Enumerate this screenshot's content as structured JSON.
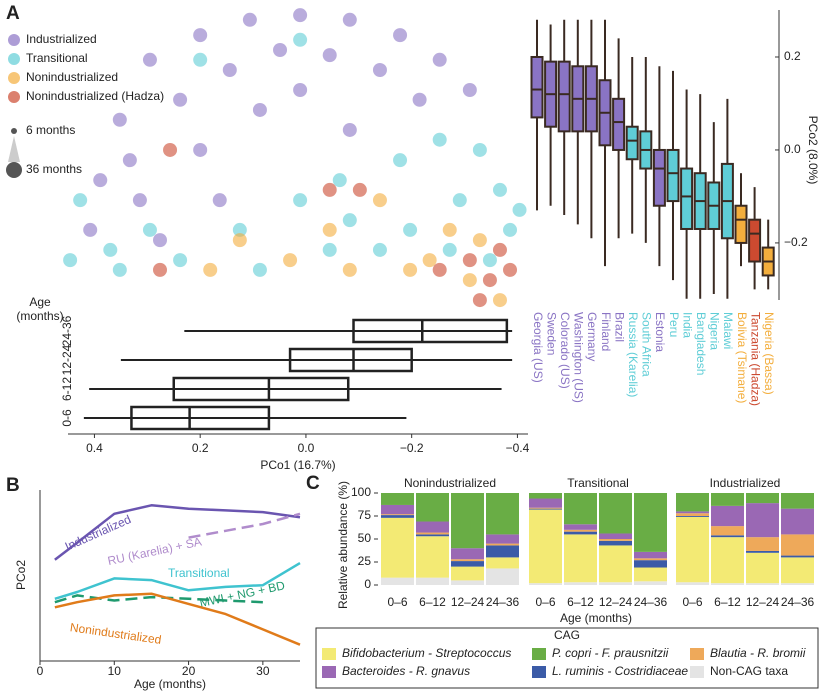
{
  "chart_data": [
    {
      "type": "scatter",
      "panel": "A",
      "xlim": [
        0.45,
        -0.42
      ],
      "ylim": [
        -0.34,
        0.3
      ],
      "size_legend": [
        "6 months",
        "36 months"
      ],
      "series": [
        {
          "name": "Industrialized",
          "color": "#8a74c4",
          "x": [
            0.295,
            0.2,
            0.106,
            0.011,
            -0.083,
            -0.178,
            -0.253,
            -0.31,
            0.238,
            0.144,
            0.049,
            -0.045,
            -0.14,
            0.352,
            0.389,
            0.314,
            0.2,
            0.087,
            0.408,
            0.276,
            0.011,
            -0.215,
            0.163,
            -0.083,
            0.333
          ],
          "y": [
            0.194,
            0.247,
            0.28,
            0.29,
            0.28,
            0.247,
            0.194,
            0.129,
            0.108,
            0.172,
            0.215,
            0.204,
            0.172,
            0.065,
            -0.065,
            -0.108,
            0,
            0.086,
            -0.172,
            -0.194,
            0.129,
            0.108,
            -0.108,
            0.043,
            -0.022
          ]
        },
        {
          "name": "Transitional",
          "color": "#5fcdd6",
          "x": [
            0.427,
            0.446,
            0.352,
            0.238,
            0.125,
            0.011,
            -0.064,
            -0.178,
            -0.253,
            -0.329,
            -0.367,
            -0.386,
            -0.348,
            0.087,
            -0.083,
            0.2,
            0.011,
            -0.197,
            -0.291,
            0.295,
            0.37,
            -0.404,
            -0.14,
            -0.045,
            -0.272
          ],
          "y": [
            -0.108,
            -0.237,
            -0.258,
            -0.237,
            -0.172,
            -0.108,
            -0.065,
            -0.022,
            0.022,
            0,
            -0.086,
            -0.172,
            -0.237,
            -0.258,
            -0.151,
            0.194,
            0.237,
            -0.172,
            -0.108,
            -0.172,
            -0.215,
            -0.129,
            -0.215,
            -0.215,
            -0.215
          ]
        },
        {
          "name": "Nonindustrialized",
          "color": "#f3ae3d",
          "x": [
            0.125,
            0.03,
            -0.045,
            -0.14,
            -0.234,
            -0.31,
            -0.367,
            -0.197,
            0.181,
            -0.083,
            -0.272,
            -0.329
          ],
          "y": [
            -0.194,
            -0.237,
            -0.172,
            -0.108,
            -0.237,
            -0.28,
            -0.323,
            -0.258,
            -0.258,
            -0.258,
            -0.172,
            -0.194
          ]
        },
        {
          "name": "Nonindustrialized (Hadza)",
          "color": "#cc4a30",
          "x": [
            0.257,
            -0.31,
            -0.348,
            -0.386,
            -0.329,
            -0.253,
            -0.367,
            -0.102,
            -0.045,
            0.276
          ],
          "y": [
            0,
            -0.237,
            -0.28,
            -0.258,
            -0.323,
            -0.258,
            -0.215,
            -0.086,
            -0.086,
            -0.258
          ]
        }
      ]
    },
    {
      "type": "box",
      "orientation": "horizontal",
      "xlabel": "PCo1 (16.7%)",
      "ylabel": [
        "Age",
        "(months)"
      ],
      "xlim": [
        0.45,
        -0.42
      ],
      "xticks": [
        0.4,
        0.2,
        {
          "value": 0,
          "label": "0.0"
        },
        {
          "value": -0.2,
          "label": "−0.2"
        },
        {
          "value": -0.4,
          "label": "−0.4"
        }
      ],
      "categories": [
        "0-6",
        "6-12",
        "12-24",
        "24-36"
      ],
      "boxes": [
        {
          "whislo": -0.19,
          "q1": 0.07,
          "med": 0.22,
          "q3": 0.33,
          "whishi": 0.42
        },
        {
          "whislo": -0.37,
          "q1": -0.08,
          "med": 0.07,
          "q3": 0.25,
          "whishi": 0.41
        },
        {
          "whislo": -0.39,
          "q1": -0.2,
          "med": -0.09,
          "q3": 0.03,
          "whishi": 0.35
        },
        {
          "whislo": -0.39,
          "q1": -0.38,
          "med": -0.22,
          "q3": -0.09,
          "whishi": 0.23
        }
      ]
    },
    {
      "type": "box",
      "orientation": "vertical",
      "ylabel": "PCo2 (8.0%)",
      "ylim": [
        -0.34,
        0.3
      ],
      "yticks": [
        0.2,
        {
          "value": 0,
          "label": "0.0"
        },
        {
          "value": -0.2,
          "label": "−0.2"
        }
      ],
      "categories": [
        "Georgia (US)",
        "Sweden",
        "Colorado (US)",
        "Washington (US)",
        "Germany",
        "Finland",
        "Brazil",
        "Russia (Karelia)",
        "South Africa",
        "Estonia",
        "Peru",
        "India",
        "Bangladesh",
        "Nigeria",
        "Malawi",
        "Bolivia (Tsimane)",
        "Tanzania (Hadza)",
        "Nigeria (Bassa)"
      ],
      "colors": [
        "#8a74c4",
        "#8a74c4",
        "#8a74c4",
        "#8a74c4",
        "#8a74c4",
        "#8a74c4",
        "#8a74c4",
        "#5fcdd6",
        "#5fcdd6",
        "#8a74c4",
        "#5fcdd6",
        "#5fcdd6",
        "#5fcdd6",
        "#5fcdd6",
        "#5fcdd6",
        "#f3ae3d",
        "#cc4a30",
        "#f3ae3d"
      ],
      "boxes": [
        {
          "whislo": -0.13,
          "q1": 0.07,
          "med": 0.13,
          "q3": 0.2,
          "whishi": 0.28
        },
        {
          "whislo": -0.12,
          "q1": 0.05,
          "med": 0.12,
          "q3": 0.19,
          "whishi": 0.27
        },
        {
          "whislo": -0.14,
          "q1": 0.04,
          "med": 0.12,
          "q3": 0.19,
          "whishi": 0.28
        },
        {
          "whislo": -0.16,
          "q1": 0.04,
          "med": 0.11,
          "q3": 0.18,
          "whishi": 0.28
        },
        {
          "whislo": -0.19,
          "q1": 0.04,
          "med": 0.11,
          "q3": 0.18,
          "whishi": 0.28
        },
        {
          "whislo": -0.25,
          "q1": 0.01,
          "med": 0.08,
          "q3": 0.15,
          "whishi": 0.28
        },
        {
          "whislo": -0.19,
          "q1": 0,
          "med": 0.06,
          "q3": 0.11,
          "whishi": 0.24
        },
        {
          "whislo": -0.18,
          "q1": -0.02,
          "med": 0.02,
          "q3": 0.05,
          "whishi": 0.2
        },
        {
          "whislo": -0.2,
          "q1": -0.04,
          "med": 0,
          "q3": 0.04,
          "whishi": 0.2
        },
        {
          "whislo": -0.25,
          "q1": -0.12,
          "med": -0.04,
          "q3": 0,
          "whishi": 0.18
        },
        {
          "whislo": -0.28,
          "q1": -0.11,
          "med": -0.05,
          "q3": 0,
          "whishi": 0.17
        },
        {
          "whislo": -0.32,
          "q1": -0.17,
          "med": -0.1,
          "q3": -0.04,
          "whishi": 0.13
        },
        {
          "whislo": -0.32,
          "q1": -0.17,
          "med": -0.11,
          "q3": -0.05,
          "whishi": 0.12
        },
        {
          "whislo": -0.31,
          "q1": -0.17,
          "med": -0.12,
          "q3": -0.07,
          "whishi": 0.06
        },
        {
          "whislo": -0.32,
          "q1": -0.19,
          "med": -0.11,
          "q3": -0.03,
          "whishi": 0.11
        },
        {
          "whislo": -0.25,
          "q1": -0.2,
          "med": -0.15,
          "q3": -0.12,
          "whishi": -0.05
        },
        {
          "whislo": -0.3,
          "q1": -0.24,
          "med": -0.18,
          "q3": -0.15,
          "whishi": -0.08
        },
        {
          "whislo": -0.3,
          "q1": -0.27,
          "med": -0.24,
          "q3": -0.21,
          "whishi": -0.15
        }
      ]
    },
    {
      "type": "line",
      "panel": "B",
      "xlabel": "Age (months)",
      "ylabel": "PCo2",
      "xlim": [
        0,
        35
      ],
      "ylim": [
        0,
        10
      ],
      "xticks": [
        0,
        10,
        20,
        30
      ],
      "x": [
        2,
        5,
        10,
        15,
        20,
        25,
        30,
        35
      ],
      "series": [
        {
          "name": "Industrialized",
          "color": "#6a55b0",
          "dashed": false,
          "values": [
            5.9,
            6.9,
            8.6,
            9.1,
            8.9,
            8.8,
            8.7,
            8.4
          ]
        },
        {
          "name": "RU (Karelia) + SA",
          "color": "#b08ccc",
          "dashed": true,
          "values": [
            null,
            null,
            null,
            null,
            7.2,
            7.6,
            8.0,
            8.6
          ]
        },
        {
          "name": "Transitional",
          "color": "#3fc3cf",
          "dashed": false,
          "values": [
            3.6,
            4.0,
            4.8,
            4.7,
            4.1,
            4.3,
            4.4,
            5.7
          ]
        },
        {
          "name": "MWI + NG + BD",
          "color": "#1f9a6e",
          "dashed": true,
          "values": [
            3.4,
            3.8,
            3.5,
            3.7,
            3.6,
            3.5,
            3.4,
            null
          ]
        },
        {
          "name": "Nonindustrialized",
          "color": "#e07b1a",
          "dashed": false,
          "values": [
            3.1,
            3.4,
            3.8,
            3.9,
            3.3,
            2.7,
            1.8,
            0.9
          ]
        }
      ]
    },
    {
      "type": "stacked-bar",
      "panel": "C",
      "ylabel": "Relative abundance (%)",
      "xlabel": "Age (months)",
      "legend_title": "CAG",
      "ylim": [
        0,
        100
      ],
      "yticks": [
        0,
        25,
        50,
        75,
        100
      ],
      "facets": [
        "Nonindustrialized",
        "Transitional",
        "Industrialized"
      ],
      "categories": [
        "0–6",
        "6–12",
        "12–24",
        "24–36"
      ],
      "series": [
        {
          "name": "Non-CAG taxa",
          "color": "#e4e4e4",
          "values": [
            [
              8,
              8,
              5,
              18
            ],
            [
              2,
              3,
              3,
              4
            ],
            [
              3,
              2,
              2,
              2
            ]
          ]
        },
        {
          "name": "Bifidobacterium - Streptococcus",
          "color": "#f3ea74",
          "values": [
            [
              65,
              45,
              15,
              12
            ],
            [
              80,
              52,
              40,
              15
            ],
            [
              71,
              50,
              33,
              28
            ]
          ]
        },
        {
          "name": "L. ruminis - Costridiaceae",
          "color": "#3b5ba7",
          "values": [
            [
              3,
              2,
              6,
              13
            ],
            [
              1,
              3,
              5,
              8
            ],
            [
              1,
              2,
              2,
              2
            ]
          ]
        },
        {
          "name": "Blautia - R. bromii",
          "color": "#eea95a",
          "values": [
            [
              1,
              2,
              2,
              2
            ],
            [
              1,
              2,
              2,
              2
            ],
            [
              3,
              10,
              15,
              23
            ]
          ]
        },
        {
          "name": "Bacteroides - R. gnavus",
          "color": "#9a68b4",
          "values": [
            [
              10,
              12,
              12,
              10
            ],
            [
              10,
              6,
              6,
              7
            ],
            [
              2,
              22,
              37,
              28
            ]
          ]
        },
        {
          "name": "P. copri - F. prausnitzii",
          "color": "#69ad45",
          "values": [
            [
              13,
              31,
              60,
              45
            ],
            [
              6,
              34,
              44,
              64
            ],
            [
              20,
              14,
              11,
              17
            ]
          ]
        }
      ]
    }
  ]
}
